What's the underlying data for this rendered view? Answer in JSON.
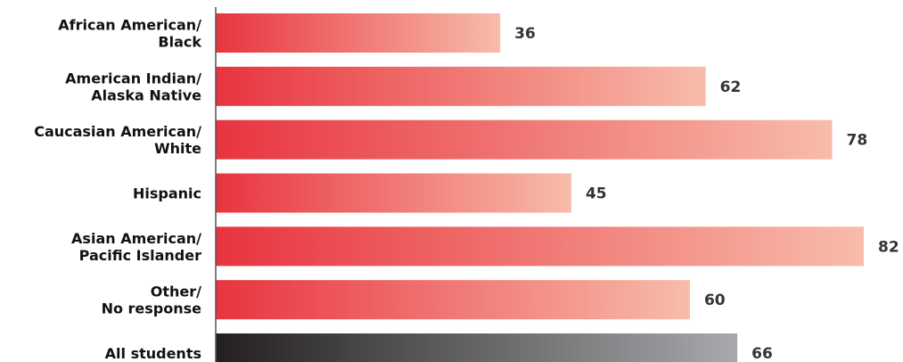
{
  "chart_data": {
    "type": "bar",
    "orientation": "horizontal",
    "categories": [
      [
        "African American/",
        "Black"
      ],
      [
        "American Indian/",
        "Alaska Native"
      ],
      [
        "Caucasian American/",
        "White"
      ],
      [
        "Hispanic"
      ],
      [
        "Asian American/",
        "Pacific Islander"
      ],
      [
        "Other/",
        "No response"
      ],
      [
        "All students"
      ]
    ],
    "values": [
      36,
      62,
      78,
      45,
      82,
      60,
      66
    ],
    "highlight": [
      "normal",
      "normal",
      "normal",
      "normal",
      "normal",
      "normal",
      "total"
    ],
    "xlim": [
      0,
      82
    ],
    "grid": false,
    "legend": "none",
    "colors": {
      "normal_start": "#e8343f",
      "normal_end": "#f8bcaa",
      "total_start": "#231f20",
      "total_end": "#a7a9ac",
      "axis": "#555555",
      "label": "#111111",
      "value": "#333333"
    }
  }
}
